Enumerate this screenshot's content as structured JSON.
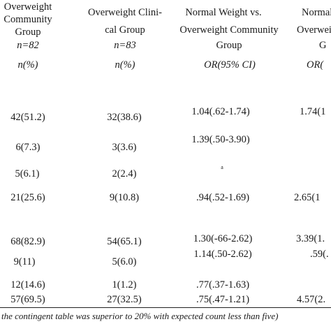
{
  "header": {
    "col1": {
      "lines": [
        "Overweight",
        "Community",
        "Group"
      ],
      "n": "n=82",
      "unit": "n(%)"
    },
    "col2": {
      "lines": [
        "Overweight Clini-",
        "cal Group"
      ],
      "n": "n=83",
      "unit": "n(%)"
    },
    "col3": {
      "lines": [
        "Normal Weight vs.",
        "Overweight Community",
        "Group"
      ],
      "unit": "OR(95% CI)"
    },
    "col4": {
      "lines": [
        "Normal",
        "Overwei",
        "G"
      ],
      "unit": "OR("
    }
  },
  "rows": [
    {
      "c1": "42(51.2)",
      "c2": "32(38.6)",
      "c3": "1.04(.62-1.74)",
      "c4": "1.74(1"
    },
    {
      "c1": "6(7.3)",
      "c2": "3(3.6)",
      "c3": "1.39(.50-3.90)",
      "c4": ""
    },
    {
      "c1": "5(6.1)",
      "c2": "2(2.4)",
      "c3": "a",
      "c4": ""
    },
    {
      "c1": "21(25.6)",
      "c2": "9(10.8)",
      "c3": ".94(.52-1.69)",
      "c4": "2.65(1"
    },
    {
      "c1": "68(82.9)",
      "c2": "54(65.1)",
      "c3": "1.30(-66-2.62)",
      "c4": "3.39(1."
    },
    {
      "c1": "9(11)",
      "c2": "5(6.0)",
      "c3": "1.14(.50-2.62)",
      "c4": ".59(."
    },
    {
      "c1": "12(14.6)",
      "c2": "1(1.2)",
      "c3": ".77(.37-1.63)",
      "c4": ""
    },
    {
      "c1": "57(69.5)",
      "c2": "27(32.5)",
      "c3": ".75(.47-1.21)",
      "c4": "4.57(2."
    }
  ],
  "footnote": "the contingent table was superior to 20% with expected count less than five)"
}
